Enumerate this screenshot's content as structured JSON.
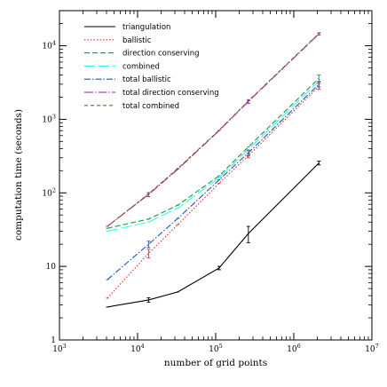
{
  "chart_data": {
    "type": "line",
    "xlabel": "number of grid points",
    "ylabel": "computation time (seconds)",
    "x_scale": "log",
    "y_scale": "log",
    "xlim": [
      1000,
      10000000
    ],
    "ylim": [
      1,
      30000
    ],
    "grid": false,
    "legend_position": "top-left",
    "x_ticks": [
      {
        "value": 1000,
        "base": "10",
        "exp": "3"
      },
      {
        "value": 10000,
        "base": "10",
        "exp": "4"
      },
      {
        "value": 100000,
        "base": "10",
        "exp": "5"
      },
      {
        "value": 1000000,
        "base": "10",
        "exp": "6"
      },
      {
        "value": 10000000,
        "base": "10",
        "exp": "7"
      }
    ],
    "y_ticks": [
      {
        "value": 1,
        "base": "1",
        "exp": ""
      },
      {
        "value": 10,
        "base": "10",
        "exp": ""
      },
      {
        "value": 100,
        "base": "10",
        "exp": "2"
      },
      {
        "value": 1000,
        "base": "10",
        "exp": "3"
      },
      {
        "value": 10000,
        "base": "10",
        "exp": "4"
      }
    ],
    "x": [
      4096,
      13824,
      32768,
      110592,
      262144,
      2097152
    ],
    "series": [
      {
        "name": "triangulation",
        "color": "#000000",
        "dash": "",
        "values": [
          2.8,
          3.5,
          4.5,
          9.5,
          28,
          255
        ],
        "errors": [
          0,
          0.25,
          0,
          0.5,
          7,
          15
        ]
      },
      {
        "name": "ballistic",
        "color": "#e0312c",
        "dash": "1.5,2",
        "values": [
          3.7,
          15,
          37,
          135,
          320,
          2800
        ],
        "errors": [
          0,
          2,
          0,
          0,
          20,
          250
        ]
      },
      {
        "name": "direction conserving",
        "color": "#1a9a3a",
        "dash": "6,3",
        "values": [
          33,
          44,
          68,
          170,
          420,
          3600
        ],
        "errors": [
          0,
          0,
          0,
          0,
          0,
          400
        ]
      },
      {
        "name": "combined",
        "color": "#3ef0f0",
        "dash": "12,4",
        "values": [
          30,
          40,
          62,
          160,
          390,
          3300
        ],
        "errors": [
          0,
          0,
          0,
          0,
          0,
          0
        ]
      },
      {
        "name": "total ballistic",
        "color": "#1f55c4",
        "dash": "7,2,1.5,2",
        "values": [
          6.6,
          20,
          45,
          150,
          350,
          3000
        ],
        "errors": [
          0,
          2,
          0,
          0,
          30,
          250
        ]
      },
      {
        "name": "total direction conserving",
        "color": "#8a2a95",
        "dash": "10,2,1.5,2",
        "values": [
          35,
          95,
          210,
          700,
          1750,
          14500
        ],
        "errors": [
          0,
          6,
          0,
          0,
          100,
          500
        ]
      },
      {
        "name": "total combined",
        "color": "#8b5a2b",
        "dash": "4,3",
        "values": [
          35,
          97,
          215,
          710,
          1780,
          14700
        ],
        "errors": [
          0,
          0,
          0,
          0,
          0,
          0
        ]
      }
    ]
  }
}
